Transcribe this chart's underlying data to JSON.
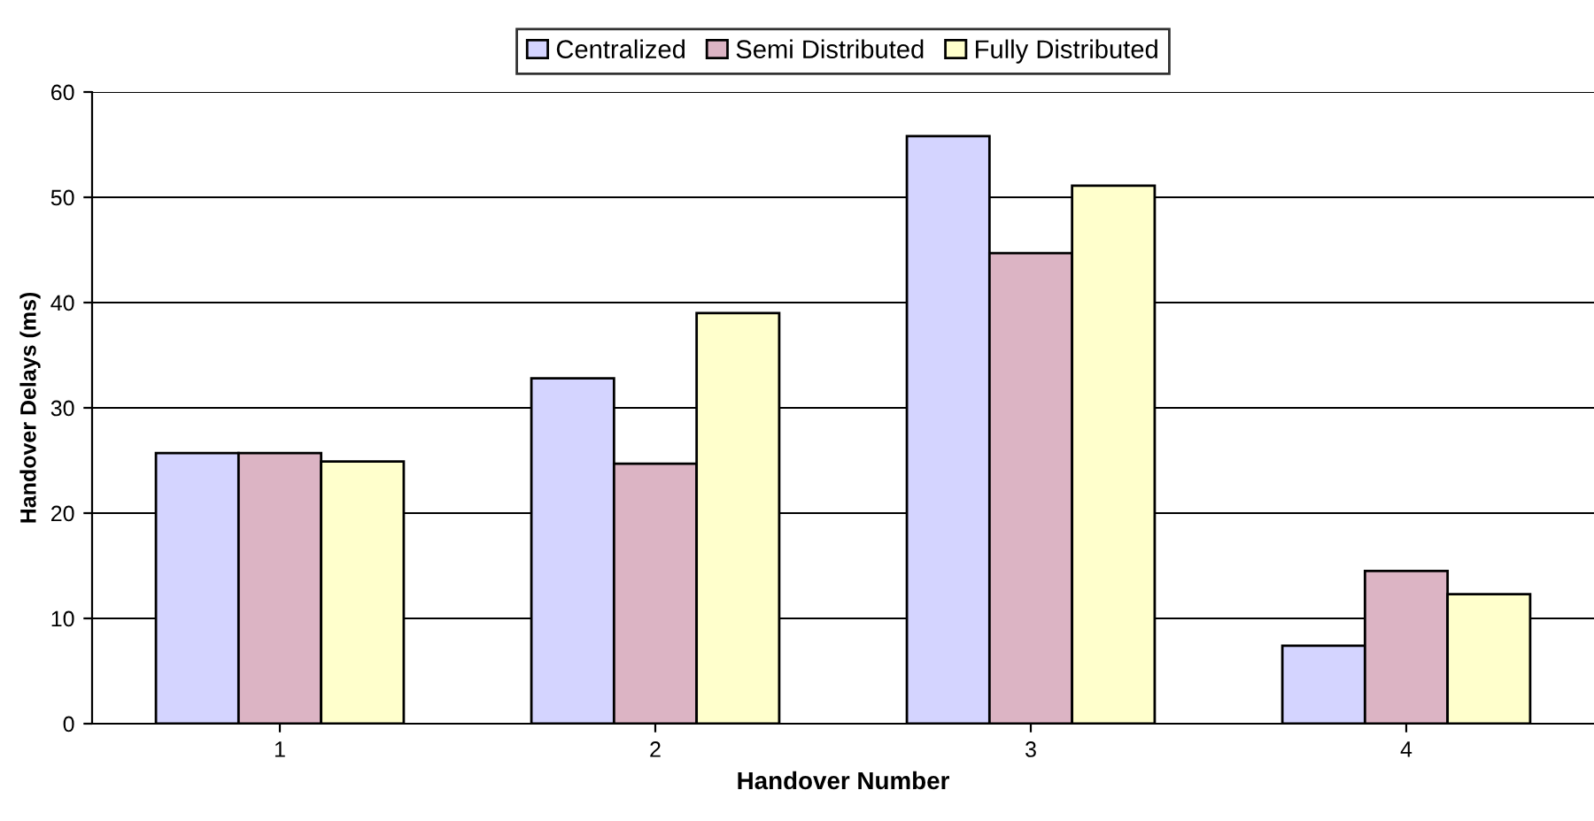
{
  "chart_data": {
    "type": "bar",
    "xlabel": "Handover Number",
    "ylabel": "Handover Delays (ms)",
    "categories": [
      "1",
      "2",
      "3",
      "4"
    ],
    "series": [
      {
        "name": "Centralized",
        "color": "#d4d4ff",
        "values": [
          25.7,
          32.8,
          55.8,
          7.4
        ]
      },
      {
        "name": "Semi Distributed",
        "color": "#dcb4c4",
        "values": [
          25.7,
          24.7,
          44.7,
          14.5
        ]
      },
      {
        "name": "Fully Distributed",
        "color": "#ffffcc",
        "values": [
          24.9,
          39.0,
          51.1,
          12.3
        ]
      }
    ],
    "ylim": [
      0,
      60
    ],
    "yticks": [
      0,
      10,
      20,
      30,
      40,
      50,
      60
    ],
    "grid": "y",
    "legend": "top"
  }
}
